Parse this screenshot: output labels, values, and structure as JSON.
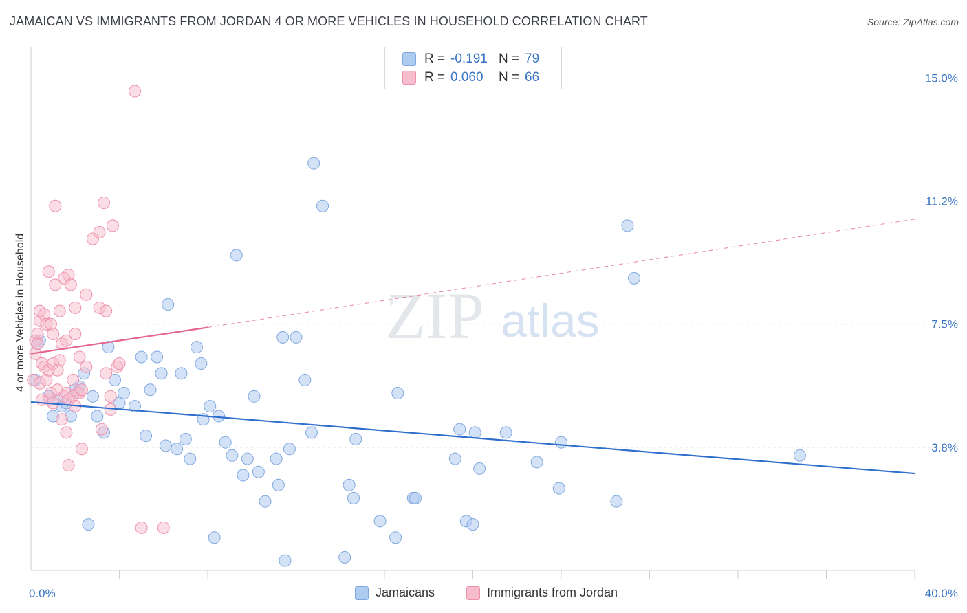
{
  "title": "JAMAICAN VS IMMIGRANTS FROM JORDAN 4 OR MORE VEHICLES IN HOUSEHOLD CORRELATION CHART",
  "source": "Source: ZipAtlas.com",
  "watermark": {
    "zip": "ZIP",
    "atlas": "atlas"
  },
  "colors": {
    "jamaicans_fill": "#aecbf0",
    "jamaicans_stroke": "#7fa8df",
    "jamaicans_line": "#2f6fcc",
    "jordan_fill": "#f7bccd",
    "jordan_stroke": "#ee8fab",
    "jordan_line": "#e5658e",
    "axis_text": "#3a74c4",
    "grid": "#d8d8d8"
  },
  "stats": [
    {
      "r_label": "R =",
      "r_value": "-0.191",
      "n_label": "N =",
      "n_value": "79"
    },
    {
      "r_label": "R =",
      "r_value": "0.060",
      "n_label": "N =",
      "n_value": "66"
    }
  ],
  "legend": [
    {
      "label": "Jamaicans"
    },
    {
      "label": "Immigrants from Jordan"
    }
  ],
  "chart_data": {
    "type": "scatter",
    "title": "JAMAICAN VS IMMIGRANTS FROM JORDAN 4 OR MORE VEHICLES IN HOUSEHOLD CORRELATION CHART",
    "ylabel": "4 or more Vehicles in Household",
    "xlabel": "",
    "x_tick_labels": [
      "0.0%",
      "40.0%"
    ],
    "y_tick_labels": [
      "15.0%",
      "11.2%",
      "7.5%",
      "3.8%"
    ],
    "y_ticks": [
      15.0,
      11.25,
      7.5,
      3.75
    ],
    "xlim": [
      0,
      40
    ],
    "ylim": [
      0,
      15.7
    ],
    "grid": true,
    "legend_position": "bottom",
    "series": [
      {
        "name": "Jamaicans",
        "trend": {
          "x0": 0,
          "y0": 5.13,
          "x1": 40,
          "y1": 2.95
        },
        "points": [
          [
            0.2,
            5.8
          ],
          [
            0.4,
            7.0
          ],
          [
            0.8,
            5.3
          ],
          [
            1.0,
            4.7
          ],
          [
            1.2,
            5.2
          ],
          [
            1.4,
            5.0
          ],
          [
            1.6,
            5.1
          ],
          [
            1.8,
            4.7
          ],
          [
            2.0,
            5.5
          ],
          [
            2.2,
            5.6
          ],
          [
            2.4,
            6.0
          ],
          [
            2.6,
            1.4
          ],
          [
            2.8,
            5.3
          ],
          [
            3.0,
            4.7
          ],
          [
            3.3,
            4.2
          ],
          [
            3.5,
            6.8
          ],
          [
            3.8,
            5.8
          ],
          [
            4.0,
            5.1
          ],
          [
            4.2,
            5.4
          ],
          [
            4.7,
            5.0
          ],
          [
            5.0,
            6.5
          ],
          [
            5.2,
            4.1
          ],
          [
            5.4,
            5.5
          ],
          [
            5.7,
            6.5
          ],
          [
            5.9,
            6.0
          ],
          [
            6.1,
            3.8
          ],
          [
            6.2,
            8.1
          ],
          [
            6.6,
            3.7
          ],
          [
            6.8,
            6.0
          ],
          [
            7.0,
            4.0
          ],
          [
            7.2,
            3.4
          ],
          [
            7.5,
            6.8
          ],
          [
            7.7,
            6.3
          ],
          [
            7.8,
            4.6
          ],
          [
            8.1,
            5.0
          ],
          [
            8.3,
            1.0
          ],
          [
            8.5,
            4.7
          ],
          [
            8.8,
            3.9
          ],
          [
            9.1,
            3.5
          ],
          [
            9.3,
            9.6
          ],
          [
            9.6,
            2.9
          ],
          [
            9.8,
            3.4
          ],
          [
            10.1,
            5.3
          ],
          [
            10.3,
            3.0
          ],
          [
            10.6,
            2.1
          ],
          [
            11.1,
            3.4
          ],
          [
            11.2,
            2.6
          ],
          [
            11.4,
            7.1
          ],
          [
            11.5,
            0.3
          ],
          [
            11.7,
            3.7
          ],
          [
            12.0,
            7.1
          ],
          [
            12.4,
            5.8
          ],
          [
            12.7,
            4.2
          ],
          [
            12.8,
            12.4
          ],
          [
            13.2,
            11.1
          ],
          [
            14.2,
            0.4
          ],
          [
            14.4,
            2.6
          ],
          [
            14.6,
            2.2
          ],
          [
            14.7,
            4.0
          ],
          [
            15.8,
            1.5
          ],
          [
            16.5,
            1.0
          ],
          [
            16.6,
            5.4
          ],
          [
            17.3,
            2.2
          ],
          [
            17.4,
            2.2
          ],
          [
            19.2,
            3.4
          ],
          [
            19.4,
            4.3
          ],
          [
            19.7,
            1.5
          ],
          [
            20.0,
            1.4
          ],
          [
            20.1,
            4.2
          ],
          [
            20.3,
            3.1
          ],
          [
            21.5,
            4.2
          ],
          [
            22.9,
            3.3
          ],
          [
            23.9,
            2.5
          ],
          [
            24.0,
            3.9
          ],
          [
            26.5,
            2.1
          ],
          [
            27.0,
            10.5
          ],
          [
            27.3,
            8.9
          ],
          [
            34.8,
            3.5
          ],
          [
            0.3,
            6.9
          ]
        ]
      },
      {
        "name": "Immigrants from Jordan",
        "trend": {
          "x0": 0,
          "y0": 6.6,
          "x1": 8.0,
          "y1": 7.4,
          "dash_x1": 40,
          "dash_y1": 10.7
        },
        "points": [
          [
            0.1,
            5.8
          ],
          [
            0.2,
            6.6
          ],
          [
            0.2,
            7.0
          ],
          [
            0.3,
            7.2
          ],
          [
            0.3,
            6.9
          ],
          [
            0.4,
            7.6
          ],
          [
            0.4,
            5.7
          ],
          [
            0.4,
            7.9
          ],
          [
            0.5,
            5.2
          ],
          [
            0.5,
            6.3
          ],
          [
            0.6,
            7.8
          ],
          [
            0.6,
            6.2
          ],
          [
            0.7,
            7.5
          ],
          [
            0.7,
            5.8
          ],
          [
            0.8,
            9.1
          ],
          [
            0.8,
            6.1
          ],
          [
            0.8,
            5.2
          ],
          [
            0.9,
            7.5
          ],
          [
            0.9,
            5.4
          ],
          [
            1.0,
            6.3
          ],
          [
            1.0,
            5.1
          ],
          [
            1.0,
            7.2
          ],
          [
            1.1,
            8.7
          ],
          [
            1.1,
            11.1
          ],
          [
            1.2,
            5.5
          ],
          [
            1.2,
            6.1
          ],
          [
            1.3,
            7.9
          ],
          [
            1.3,
            6.4
          ],
          [
            1.4,
            6.9
          ],
          [
            1.4,
            4.6
          ],
          [
            1.5,
            5.3
          ],
          [
            1.5,
            8.9
          ],
          [
            1.6,
            7.0
          ],
          [
            1.6,
            4.2
          ],
          [
            1.6,
            5.4
          ],
          [
            1.7,
            9.0
          ],
          [
            1.7,
            5.2
          ],
          [
            1.7,
            3.2
          ],
          [
            1.8,
            8.7
          ],
          [
            1.9,
            5.8
          ],
          [
            1.9,
            5.3
          ],
          [
            2.0,
            7.2
          ],
          [
            2.0,
            5.0
          ],
          [
            2.0,
            8.0
          ],
          [
            2.1,
            5.4
          ],
          [
            2.2,
            6.5
          ],
          [
            2.2,
            5.4
          ],
          [
            2.3,
            5.5
          ],
          [
            2.3,
            3.7
          ],
          [
            2.5,
            8.4
          ],
          [
            2.5,
            6.2
          ],
          [
            2.8,
            10.1
          ],
          [
            3.1,
            10.3
          ],
          [
            3.1,
            8.0
          ],
          [
            3.2,
            4.3
          ],
          [
            3.3,
            11.2
          ],
          [
            3.4,
            6.0
          ],
          [
            3.4,
            7.9
          ],
          [
            3.6,
            5.3
          ],
          [
            3.6,
            4.9
          ],
          [
            3.7,
            10.5
          ],
          [
            3.9,
            6.2
          ],
          [
            4.0,
            6.3
          ],
          [
            4.7,
            14.6
          ],
          [
            5.0,
            1.3
          ],
          [
            6.0,
            1.3
          ]
        ]
      }
    ]
  }
}
